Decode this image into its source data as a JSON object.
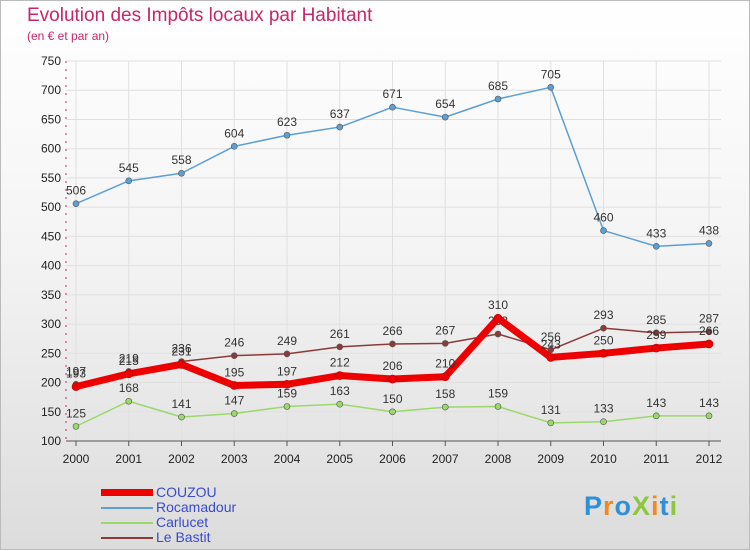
{
  "title": "Evolution des Impôts locaux par Habitant",
  "subtitle": "(en € et par an)",
  "logo": {
    "text": "ProXiti",
    "letters": [
      {
        "ch": "P",
        "color": "#2f8fd8"
      },
      {
        "ch": "r",
        "color": "#f08a1c"
      },
      {
        "ch": "o",
        "color": "#2f8fd8"
      },
      {
        "ch": "X",
        "color": "#8dc63f"
      },
      {
        "ch": "i",
        "color": "#f08a1c"
      },
      {
        "ch": "t",
        "color": "#2f8fd8"
      },
      {
        "ch": "i",
        "color": "#8dc63f"
      }
    ]
  },
  "chart_data": {
    "type": "line",
    "title": "Evolution des Impôts locaux par Habitant",
    "subtitle": "(en € et par an)",
    "x": [
      2000,
      2001,
      2002,
      2003,
      2004,
      2005,
      2006,
      2007,
      2008,
      2009,
      2010,
      2011,
      2012
    ],
    "ylim": [
      100,
      750
    ],
    "yticks": [
      100,
      150,
      200,
      250,
      300,
      350,
      400,
      450,
      500,
      550,
      600,
      650,
      700,
      750
    ],
    "series": [
      {
        "name": "Rocamadour",
        "color": "#5b9fd6",
        "values": [
          506,
          545,
          558,
          604,
          623,
          637,
          671,
          654,
          685,
          705,
          460,
          433,
          438
        ]
      },
      {
        "name": "Carlucet",
        "color": "#9bd86a",
        "values": [
          125,
          168,
          141,
          147,
          159,
          163,
          150,
          158,
          159,
          131,
          133,
          143,
          143
        ]
      },
      {
        "name": "Le Bastit",
        "color": "#8b3a3a",
        "values": [
          197,
          219,
          236,
          246,
          249,
          261,
          266,
          267,
          283,
          256,
          293,
          285,
          287
        ]
      },
      {
        "name": "COUZOU",
        "color": "#ee0000",
        "values": [
          193,
          215,
          231,
          195,
          197,
          212,
          206,
          210,
          310,
          243,
          250,
          259,
          266
        ]
      }
    ],
    "legend": [
      "COUZOU",
      "Rocamadour",
      "Carlucet",
      "Le Bastit"
    ]
  }
}
